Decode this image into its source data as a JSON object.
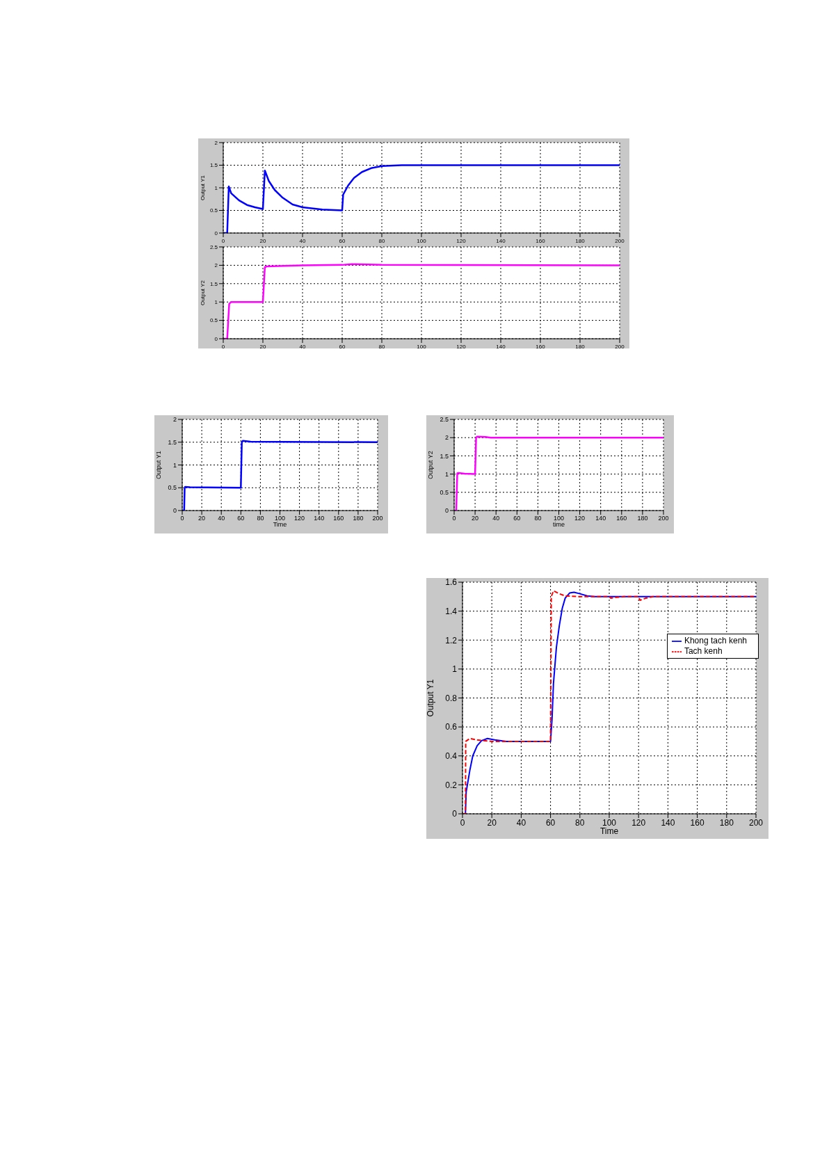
{
  "chart_data": [
    {
      "type": "line",
      "ylabel": "Output Y1",
      "xlim": [
        0,
        200
      ],
      "xticks": [
        0,
        20,
        40,
        60,
        80,
        100,
        120,
        140,
        160,
        180,
        200
      ],
      "ylim": [
        0,
        2
      ],
      "yticks": [
        0,
        0.5,
        1,
        1.5,
        2
      ],
      "grid": true,
      "legend": false,
      "marker": "none",
      "line_style": "solid",
      "series": [
        {
          "color": "#0000ff",
          "x": [
            0,
            2,
            2.8,
            4,
            8,
            12,
            16,
            20,
            21,
            23,
            26,
            30,
            35,
            40,
            50,
            60,
            60.5,
            63,
            66,
            70,
            75,
            80,
            90,
            200
          ],
          "values": [
            0,
            0,
            1.03,
            0.88,
            0.72,
            0.62,
            0.57,
            0.53,
            1.38,
            1.15,
            0.95,
            0.78,
            0.63,
            0.57,
            0.52,
            0.5,
            0.85,
            1.05,
            1.22,
            1.35,
            1.44,
            1.48,
            1.5,
            1.5
          ]
        }
      ]
    },
    {
      "type": "line",
      "ylabel": "Output Y2",
      "xlim": [
        0,
        200
      ],
      "xticks": [
        0,
        20,
        40,
        60,
        80,
        100,
        120,
        140,
        160,
        180,
        200
      ],
      "ylim": [
        0,
        2.5
      ],
      "yticks": [
        0,
        0.5,
        1,
        1.5,
        2,
        2.5
      ],
      "grid": true,
      "legend": false,
      "marker": "none",
      "line_style": "solid",
      "series": [
        {
          "color": "#ff00ff",
          "x": [
            0,
            2,
            3,
            4,
            20,
            21,
            22,
            40,
            60,
            65,
            80,
            200
          ],
          "values": [
            0,
            0,
            0.95,
            1,
            1,
            1.95,
            1.97,
            2,
            2.01,
            2.03,
            2.01,
            2
          ]
        }
      ]
    },
    {
      "type": "line",
      "xlabel": "Time",
      "ylabel": "Output Y1",
      "xlim": [
        0,
        200
      ],
      "xticks": [
        0,
        20,
        40,
        60,
        80,
        100,
        120,
        140,
        160,
        180,
        200
      ],
      "ylim": [
        0,
        2
      ],
      "yticks": [
        0,
        0.5,
        1,
        1.5,
        2
      ],
      "grid": true,
      "legend": false,
      "marker": "none",
      "line_style": "solid",
      "series": [
        {
          "color": "#0000ff",
          "x": [
            0,
            2,
            2.5,
            3,
            8,
            60,
            61,
            62,
            70,
            200
          ],
          "values": [
            0,
            0,
            0.5,
            0.52,
            0.51,
            0.5,
            1.5,
            1.53,
            1.51,
            1.5
          ]
        }
      ]
    },
    {
      "type": "line",
      "xlabel": "time",
      "ylabel": "Output Y2",
      "xlim": [
        0,
        200
      ],
      "xticks": [
        0,
        20,
        40,
        60,
        80,
        100,
        120,
        140,
        160,
        180,
        200
      ],
      "ylim": [
        0,
        2.5
      ],
      "yticks": [
        0,
        0.5,
        1,
        1.5,
        2,
        2.5
      ],
      "grid": true,
      "legend": false,
      "marker": "none",
      "line_style": "solid",
      "series": [
        {
          "color": "#ff00ff",
          "x": [
            0,
            2,
            3,
            4,
            10,
            20,
            21,
            22,
            30,
            35,
            200
          ],
          "values": [
            0,
            0,
            1.02,
            1.03,
            1.01,
            1,
            2,
            2.03,
            2.02,
            2,
            2
          ]
        }
      ]
    },
    {
      "type": "line",
      "xlabel": "Time",
      "ylabel": "Output Y1",
      "xlim": [
        0,
        200
      ],
      "xticks": [
        0,
        20,
        40,
        60,
        80,
        100,
        120,
        140,
        160,
        180,
        200
      ],
      "ylim": [
        0,
        1.6
      ],
      "yticks": [
        0,
        0.2,
        0.4,
        0.6,
        0.8,
        1,
        1.2,
        1.4,
        1.6
      ],
      "grid": true,
      "legend": "top right",
      "marker": "none",
      "series": [
        {
          "name": "Khong tach kenh",
          "color": "#0000ff",
          "line_style": "solid",
          "x": [
            0,
            2,
            2.5,
            5,
            7,
            10,
            13,
            17,
            22,
            30,
            60,
            61,
            62,
            64,
            66,
            68,
            70,
            73,
            76,
            80,
            85,
            90,
            200
          ],
          "values": [
            0,
            0,
            0.15,
            0.3,
            0.4,
            0.47,
            0.505,
            0.52,
            0.51,
            0.5,
            0.5,
            0.65,
            0.9,
            1.15,
            1.3,
            1.42,
            1.49,
            1.525,
            1.53,
            1.52,
            1.505,
            1.5,
            1.5
          ]
        },
        {
          "name": "Tach kenh",
          "color": "#ff0000",
          "line_style": "dashed",
          "x": [
            0,
            2,
            2.2,
            5,
            10,
            20,
            60,
            60.5,
            62,
            66,
            70,
            80,
            100,
            101,
            105,
            110,
            120,
            121,
            125,
            130,
            200
          ],
          "values": [
            0,
            0,
            0.5,
            0.52,
            0.51,
            0.5,
            0.5,
            1.5,
            1.54,
            1.52,
            1.505,
            1.5,
            1.5,
            1.49,
            1.495,
            1.5,
            1.5,
            1.475,
            1.49,
            1.5,
            1.5
          ]
        }
      ]
    }
  ]
}
